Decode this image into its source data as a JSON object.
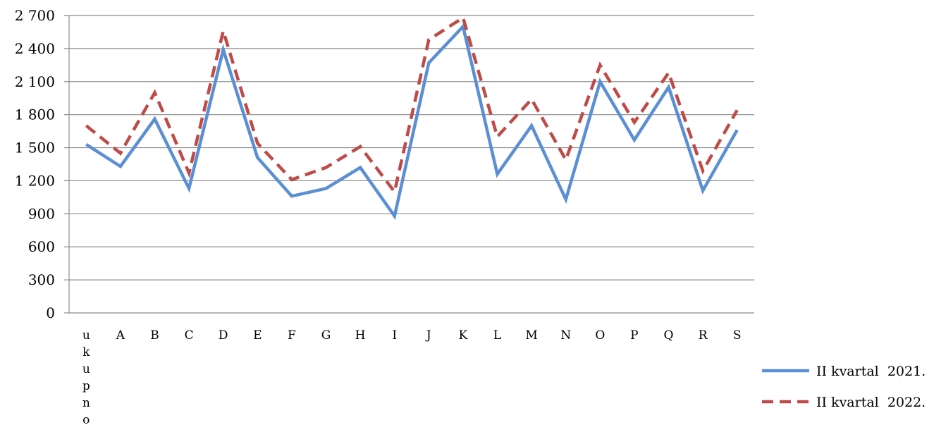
{
  "chart_data": {
    "type": "line",
    "categories": [
      "ukupno",
      "A",
      "B",
      "C",
      "D",
      "E",
      "F",
      "G",
      "H",
      "I",
      "J",
      "K",
      "L",
      "M",
      "N",
      "O",
      "P",
      "Q",
      "R",
      "S"
    ],
    "y_ticks": [
      "0",
      "300",
      "600",
      "900",
      "1 200",
      "1 500",
      "1 800",
      "2 100",
      "2 400",
      "2 700"
    ],
    "ylim": [
      0,
      2700
    ],
    "grid": true,
    "legend_position": "right",
    "series": [
      {
        "name": "II kvartal  2021.",
        "color": "#5B8FD4",
        "style": "solid",
        "values": [
          1530,
          1330,
          1760,
          1130,
          2390,
          1410,
          1060,
          1130,
          1320,
          880,
          2270,
          2600,
          1260,
          1700,
          1030,
          2100,
          1570,
          2050,
          1110,
          1660
        ]
      },
      {
        "name": "II kvartal  2022.",
        "color": "#BE4B48",
        "style": "dashed",
        "values": [
          1700,
          1450,
          2000,
          1270,
          2560,
          1540,
          1210,
          1320,
          1510,
          1100,
          2480,
          2680,
          1600,
          1940,
          1390,
          2250,
          1730,
          2180,
          1290,
          1840
        ]
      }
    ]
  }
}
